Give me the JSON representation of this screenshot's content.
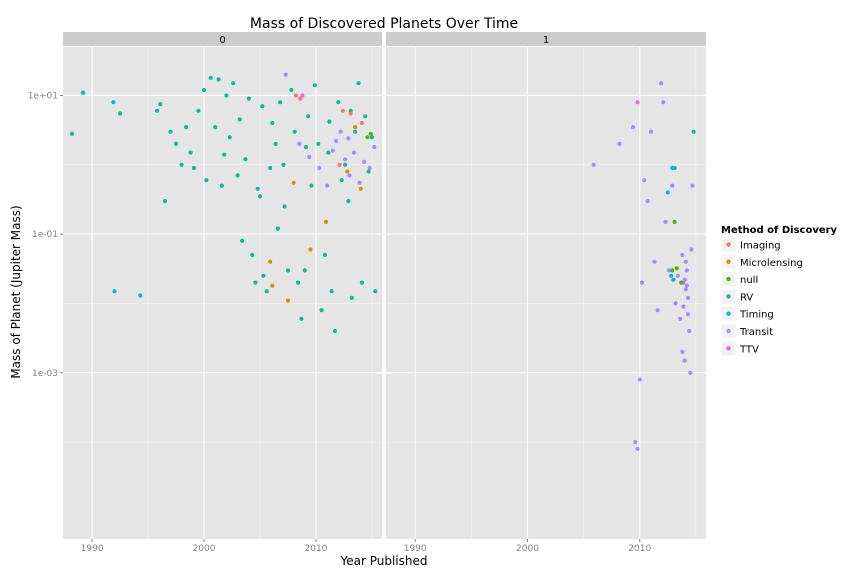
{
  "chart_data": {
    "type": "scatter",
    "title": "Mass of Discovered Planets Over Time",
    "xlabel": "Year Published",
    "ylabel": "Mass of Planet (Jupiter Mass)",
    "x_scale": "linear",
    "y_scale": "log10",
    "xlim": [
      1987.4,
      2015.9
    ],
    "ylim": [
      4e-06,
      50
    ],
    "x_ticks": [
      1990,
      2000,
      2010
    ],
    "x_tick_labels": [
      "1990",
      "2000",
      "2010"
    ],
    "y_ticks": [
      10,
      0.1,
      0.001
    ],
    "y_tick_labels": [
      "1e+01",
      "1e-01",
      "1e-03"
    ],
    "grid": true,
    "facets": [
      "0",
      "1"
    ],
    "legend": {
      "title": "Method of Discovery",
      "placement": "right",
      "entries": [
        {
          "label": "Imaging",
          "color": "#F8766D"
        },
        {
          "label": "Microlensing",
          "color": "#C49A00"
        },
        {
          "label": "null",
          "color": "#53B400"
        },
        {
          "label": "RV",
          "color": "#00C094"
        },
        {
          "label": "Timing",
          "color": "#00B6EB"
        },
        {
          "label": "Transit",
          "color": "#A58AFF"
        },
        {
          "label": "TTV",
          "color": "#FB61D7"
        }
      ]
    },
    "panels": [
      {
        "facet": "0",
        "series": [
          {
            "name": "RV",
            "color": "#00C094",
            "points": [
              [
                1988.2,
                2.8
              ],
              [
                1989.2,
                11.0
              ],
              [
                1992.5,
                5.5
              ],
              [
                1995.8,
                6.0
              ],
              [
                1996.1,
                7.5
              ],
              [
                1996.5,
                0.3
              ],
              [
                1997.0,
                3.0
              ],
              [
                1997.5,
                2.0
              ],
              [
                1998.0,
                1.0
              ],
              [
                1998.4,
                3.5
              ],
              [
                1998.8,
                1.5
              ],
              [
                1999.1,
                0.9
              ],
              [
                1999.5,
                6.0
              ],
              [
                2000.0,
                12.0
              ],
              [
                2000.2,
                0.6
              ],
              [
                2000.6,
                18.0
              ],
              [
                2001.0,
                3.5
              ],
              [
                2001.3,
                17.0
              ],
              [
                2001.6,
                0.5
              ],
              [
                2002.0,
                10.0
              ],
              [
                2002.3,
                2.5
              ],
              [
                2002.6,
                15.0
              ],
              [
                2003.0,
                0.7
              ],
              [
                2003.4,
                0.08
              ],
              [
                2003.7,
                1.2
              ],
              [
                2004.0,
                9.0
              ],
              [
                2004.3,
                0.05
              ],
              [
                2004.6,
                0.02
              ],
              [
                2005.0,
                0.35
              ],
              [
                2005.3,
                0.025
              ],
              [
                2005.6,
                0.015
              ],
              [
                2005.9,
                0.9
              ],
              [
                2006.1,
                4.0
              ],
              [
                2006.4,
                2.0
              ],
              [
                2006.8,
                8.0
              ],
              [
                2007.1,
                1.0
              ],
              [
                2007.5,
                0.03
              ],
              [
                2007.8,
                12.0
              ],
              [
                2008.1,
                3.0
              ],
              [
                2008.4,
                0.02
              ],
              [
                2008.7,
                0.006
              ],
              [
                2009.0,
                0.03
              ],
              [
                2009.3,
                5.0
              ],
              [
                2009.6,
                0.5
              ],
              [
                2009.9,
                14.0
              ],
              [
                2010.2,
                2.0
              ],
              [
                2010.5,
                0.008
              ],
              [
                2010.8,
                0.05
              ],
              [
                2011.1,
                1.5
              ],
              [
                2011.4,
                0.015
              ],
              [
                2011.7,
                0.004
              ],
              [
                2012.0,
                8.0
              ],
              [
                2012.3,
                0.6
              ],
              [
                2012.6,
                1.0
              ],
              [
                2012.9,
                0.3
              ],
              [
                2013.2,
                0.012
              ],
              [
                2013.5,
                3.0
              ],
              [
                2013.8,
                15.0
              ],
              [
                2014.1,
                0.02
              ],
              [
                2014.4,
                5.0
              ],
              [
                2014.7,
                0.8
              ],
              [
                2015.0,
                2.5
              ],
              [
                2015.3,
                0.015
              ],
              [
                2003.2,
                4.5
              ],
              [
                2005.2,
                7.0
              ],
              [
                2007.2,
                0.25
              ],
              [
                2009.1,
                1.8
              ],
              [
                2011.2,
                4.2
              ],
              [
                2013.1,
                6.0
              ],
              [
                2001.8,
                1.4
              ],
              [
                2004.8,
                0.45
              ],
              [
                2006.6,
                0.12
              ]
            ]
          },
          {
            "name": "Timing",
            "color": "#00B6EB",
            "points": [
              [
                1991.9,
                8.0
              ],
              [
                1992.0,
                0.015
              ],
              [
                1994.3,
                0.013
              ]
            ]
          },
          {
            "name": "Microlensing",
            "color": "#C49A00",
            "points": [
              [
                2005.9,
                0.04
              ],
              [
                2006.1,
                0.018
              ],
              [
                2007.5,
                0.011
              ],
              [
                2008.0,
                0.55
              ],
              [
                2009.5,
                0.06
              ],
              [
                2010.9,
                0.15
              ],
              [
                2012.8,
                0.8
              ],
              [
                2013.5,
                3.5
              ],
              [
                2014.0,
                0.45
              ]
            ]
          },
          {
            "name": "Imaging",
            "color": "#F8766D",
            "points": [
              [
                2008.2,
                10.0
              ],
              [
                2008.6,
                9.0
              ],
              [
                2012.4,
                6.0
              ],
              [
                2013.1,
                5.5
              ],
              [
                2014.1,
                4.0
              ],
              [
                2012.1,
                1.0
              ]
            ]
          },
          {
            "name": "null",
            "color": "#53B400",
            "points": [
              [
                2014.6,
                2.5
              ],
              [
                2014.9,
                2.8
              ]
            ]
          },
          {
            "name": "Transit",
            "color": "#A58AFF",
            "points": [
              [
                2007.3,
                20.0
              ],
              [
                2008.5,
                2.0
              ],
              [
                2009.4,
                1.3
              ],
              [
                2010.3,
                0.9
              ],
              [
                2011.0,
                0.5
              ],
              [
                2011.8,
                2.2
              ],
              [
                2012.2,
                3.0
              ],
              [
                2012.6,
                1.2
              ],
              [
                2013.0,
                0.7
              ],
              [
                2013.4,
                1.5
              ],
              [
                2013.9,
                0.55
              ],
              [
                2014.3,
                1.1
              ],
              [
                2014.8,
                0.9
              ],
              [
                2015.2,
                1.8
              ],
              [
                2011.5,
                1.6
              ],
              [
                2012.9,
                2.4
              ]
            ]
          },
          {
            "name": "TTV",
            "color": "#FB61D7",
            "points": [
              [
                2008.8,
                10.0
              ]
            ]
          }
        ]
      },
      {
        "facet": "1",
        "series": [
          {
            "name": "Transit",
            "color": "#A58AFF",
            "points": [
              [
                2005.9,
                1.0
              ],
              [
                2008.2,
                2.0
              ],
              [
                2009.4,
                3.5
              ],
              [
                2009.6,
                0.0001
              ],
              [
                2009.8,
                8e-05
              ],
              [
                2010.0,
                0.0008
              ],
              [
                2010.2,
                0.02
              ],
              [
                2010.4,
                0.6
              ],
              [
                2010.7,
                0.3
              ],
              [
                2011.0,
                3.0
              ],
              [
                2011.3,
                0.04
              ],
              [
                2011.6,
                0.008
              ],
              [
                2011.9,
                15.0
              ],
              [
                2012.1,
                8.0
              ],
              [
                2012.3,
                0.15
              ],
              [
                2012.6,
                0.03
              ],
              [
                2012.9,
                0.5
              ],
              [
                2013.2,
                0.01
              ],
              [
                2013.4,
                0.025
              ],
              [
                2013.6,
                0.006
              ],
              [
                2013.8,
                0.002
              ],
              [
                2013.9,
                0.02
              ],
              [
                2014.0,
                0.0015
              ],
              [
                2014.1,
                0.04
              ],
              [
                2014.2,
                0.03
              ],
              [
                2014.3,
                0.012
              ],
              [
                2014.4,
                0.004
              ],
              [
                2014.5,
                0.001
              ],
              [
                2014.6,
                0.06
              ],
              [
                2014.7,
                0.5
              ],
              [
                2014.2,
                0.018
              ],
              [
                2014.0,
                0.022
              ],
              [
                2013.9,
                0.009
              ],
              [
                2014.3,
                0.007
              ],
              [
                2014.1,
                0.016
              ],
              [
                2013.8,
                0.05
              ]
            ]
          },
          {
            "name": "RV",
            "color": "#00C094",
            "points": [
              [
                2014.8,
                3.0
              ],
              [
                2013.1,
                0.9
              ]
            ]
          },
          {
            "name": "Timing",
            "color": "#00B6EB",
            "points": [
              [
                2012.8,
                0.025
              ],
              [
                2013.0,
                0.022
              ],
              [
                2012.5,
                0.4
              ],
              [
                2012.9,
                0.9
              ]
            ]
          },
          {
            "name": "null",
            "color": "#53B400",
            "points": [
              [
                2013.1,
                0.15
              ],
              [
                2012.9,
                0.03
              ],
              [
                2013.3,
                0.032
              ],
              [
                2013.7,
                0.02
              ]
            ]
          },
          {
            "name": "TTV",
            "color": "#FB61D7",
            "points": [
              [
                2009.8,
                8.0
              ]
            ]
          }
        ]
      }
    ]
  }
}
